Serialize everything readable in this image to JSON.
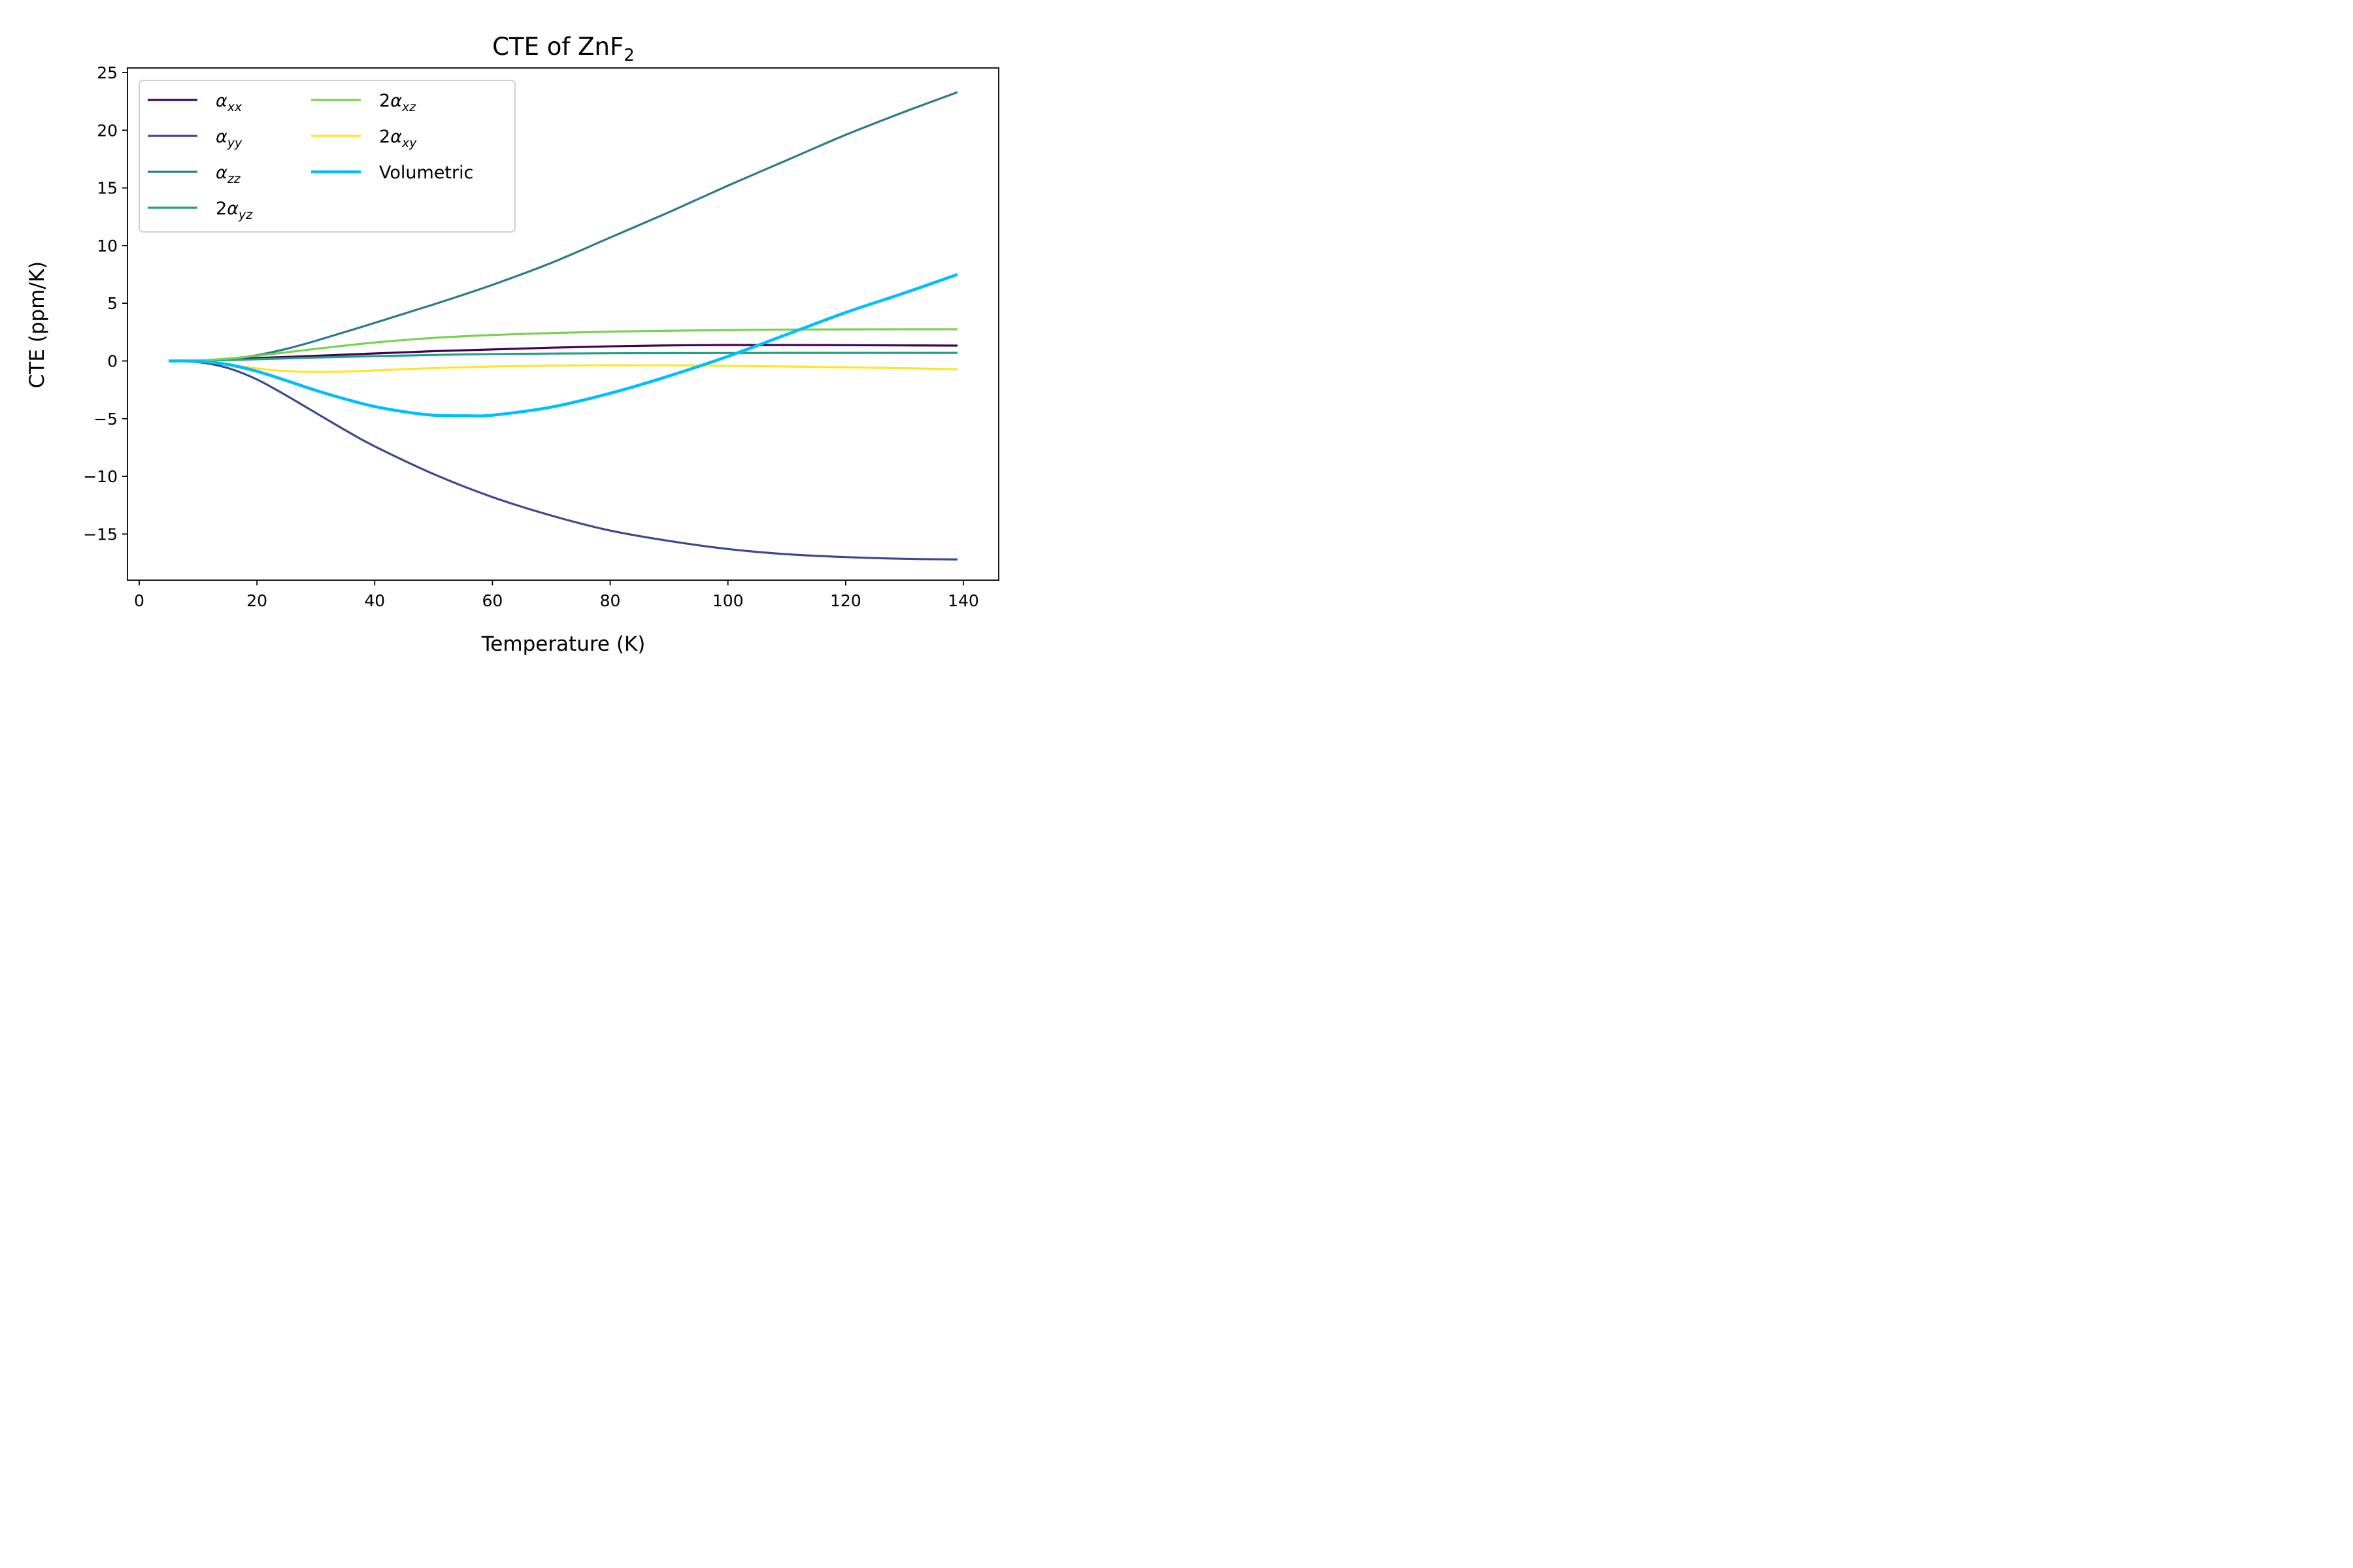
{
  "chart_data": {
    "type": "line",
    "title": "CTE of ZnF",
    "title_subscript": "2",
    "xlabel": "Temperature (K)",
    "ylabel": "CTE (ppm/K)",
    "xlim": [
      -2,
      146
    ],
    "ylim": [
      -19,
      25.4
    ],
    "xticks": [
      0,
      20,
      40,
      60,
      80,
      100,
      120,
      140
    ],
    "xtick_labels": [
      "0",
      "20",
      "40",
      "60",
      "80",
      "100",
      "120",
      "140"
    ],
    "yticks": [
      -15,
      -10,
      -5,
      0,
      5,
      10,
      15,
      20,
      25
    ],
    "ytick_labels": [
      "−15",
      "−10",
      "−5",
      "0",
      "5",
      "10",
      "15",
      "20",
      "25"
    ],
    "grid": false,
    "legend_position": "top-left",
    "legend_columns": 2,
    "series": [
      {
        "name": "α_xx",
        "prefix": "",
        "symbol": "α",
        "subscript": "xx",
        "color": "#440154",
        "width": 3.2,
        "x": [
          5,
          10,
          15,
          20,
          25,
          30,
          40,
          50,
          60,
          70,
          80,
          90,
          100,
          110,
          120,
          130,
          139
        ],
        "y": [
          0,
          0.02,
          0.12,
          0.25,
          0.35,
          0.45,
          0.65,
          0.85,
          1.0,
          1.15,
          1.27,
          1.35,
          1.38,
          1.38,
          1.37,
          1.35,
          1.33
        ]
      },
      {
        "name": "α_yy",
        "prefix": "",
        "symbol": "α",
        "subscript": "yy",
        "color": "#3b4a8c",
        "width": 3.2,
        "x": [
          5,
          10,
          15,
          20,
          25,
          30,
          35,
          40,
          50,
          60,
          70,
          80,
          90,
          100,
          110,
          120,
          130,
          139
        ],
        "y": [
          0,
          -0.1,
          -0.6,
          -1.6,
          -3.0,
          -4.5,
          -6.0,
          -7.4,
          -9.8,
          -11.8,
          -13.4,
          -14.7,
          -15.6,
          -16.3,
          -16.75,
          -17.0,
          -17.15,
          -17.2
        ]
      },
      {
        "name": "α_zz",
        "prefix": "",
        "symbol": "α",
        "subscript": "zz",
        "color": "#2c7a8c",
        "width": 3.2,
        "x": [
          5,
          10,
          15,
          20,
          25,
          30,
          40,
          50,
          60,
          70,
          80,
          90,
          100,
          110,
          120,
          130,
          139
        ],
        "y": [
          0,
          0.02,
          0.15,
          0.5,
          1.05,
          1.75,
          3.3,
          4.9,
          6.6,
          8.5,
          10.7,
          12.9,
          15.2,
          17.4,
          19.6,
          21.6,
          23.3
        ]
      },
      {
        "name": "2α_yz",
        "prefix": "2",
        "symbol": "α",
        "subscript": "yz",
        "color": "#22a085",
        "width": 3.2,
        "x": [
          5,
          10,
          15,
          20,
          30,
          40,
          50,
          60,
          70,
          80,
          90,
          100,
          110,
          120,
          130,
          139
        ],
        "y": [
          0,
          0.02,
          0.08,
          0.15,
          0.3,
          0.42,
          0.52,
          0.6,
          0.64,
          0.67,
          0.68,
          0.69,
          0.7,
          0.7,
          0.7,
          0.7
        ]
      },
      {
        "name": "2α_xz",
        "prefix": "2",
        "symbol": "α",
        "subscript": "xz",
        "color": "#7ad151",
        "width": 3.2,
        "x": [
          5,
          10,
          15,
          20,
          25,
          30,
          40,
          50,
          60,
          70,
          80,
          90,
          100,
          110,
          120,
          130,
          139
        ],
        "y": [
          0,
          0.05,
          0.2,
          0.45,
          0.75,
          1.05,
          1.6,
          2.0,
          2.25,
          2.42,
          2.55,
          2.62,
          2.68,
          2.72,
          2.74,
          2.75,
          2.75
        ]
      },
      {
        "name": "2α_xy",
        "prefix": "2",
        "symbol": "α",
        "subscript": "xy",
        "color": "#fde725",
        "width": 3.2,
        "x": [
          5,
          10,
          15,
          20,
          25,
          30,
          35,
          40,
          50,
          60,
          70,
          80,
          90,
          100,
          110,
          120,
          130,
          139
        ],
        "y": [
          0,
          -0.05,
          -0.3,
          -0.65,
          -0.88,
          -0.95,
          -0.92,
          -0.82,
          -0.62,
          -0.48,
          -0.4,
          -0.37,
          -0.38,
          -0.42,
          -0.48,
          -0.55,
          -0.63,
          -0.72
        ]
      },
      {
        "name": "Volumetric",
        "prefix": "",
        "symbol": "",
        "subscript": "",
        "color": "#00bfff",
        "width": 4.6,
        "x": [
          5,
          10,
          15,
          20,
          25,
          30,
          35,
          40,
          45,
          50,
          56,
          60,
          70,
          80,
          90,
          100,
          110,
          120,
          130,
          139
        ],
        "y": [
          0,
          -0.02,
          -0.3,
          -0.9,
          -1.7,
          -2.55,
          -3.3,
          -3.95,
          -4.4,
          -4.7,
          -4.75,
          -4.7,
          -4.0,
          -2.8,
          -1.3,
          0.4,
          2.3,
          4.2,
          5.9,
          7.5
        ]
      }
    ]
  }
}
